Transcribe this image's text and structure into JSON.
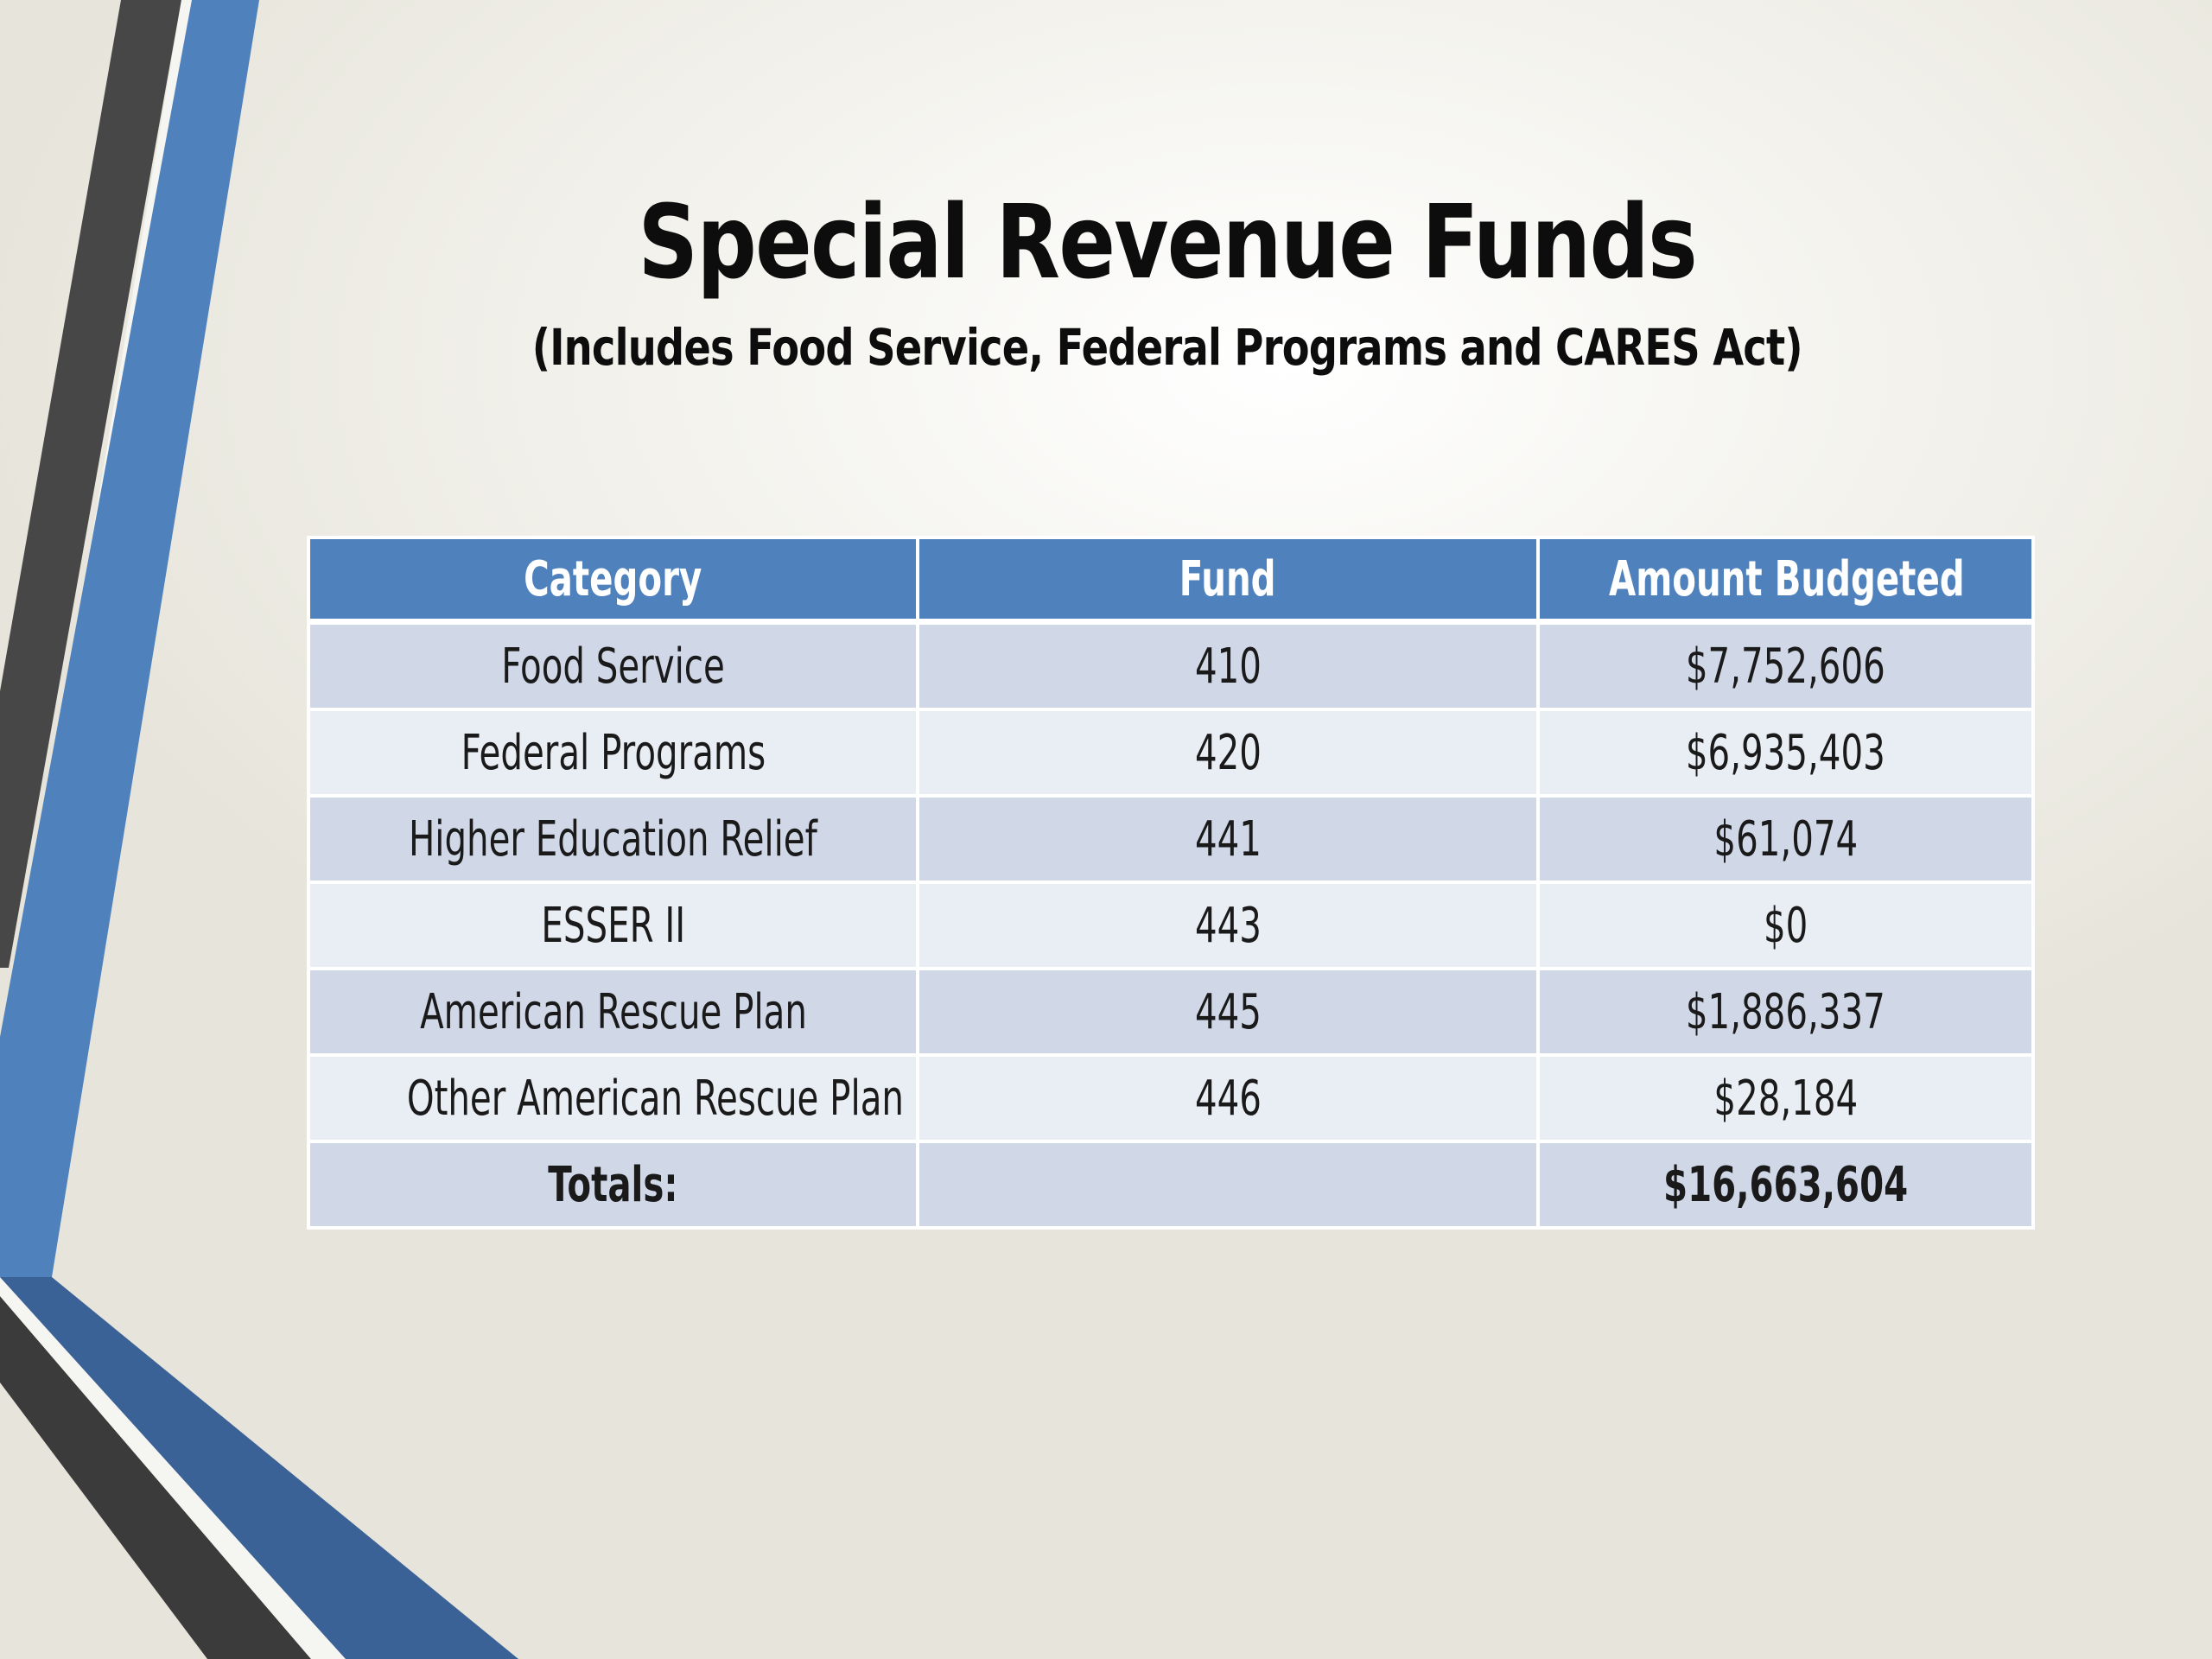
{
  "slide": {
    "title": "Special Revenue Funds",
    "subtitle": "(Includes Food Service, Federal Programs and CARES Act)"
  },
  "table": {
    "headers": [
      "Category",
      "Fund",
      "Amount Budgeted"
    ],
    "rows": [
      {
        "category": "Food Service",
        "fund": "410",
        "amount": "$7,752,606"
      },
      {
        "category": "Federal Programs",
        "fund": "420",
        "amount": "$6,935,403"
      },
      {
        "category": "Higher Education Relief",
        "fund": "441",
        "amount": "$61,074"
      },
      {
        "category": "ESSER II",
        "fund": "443",
        "amount": "$0"
      },
      {
        "category": "American Rescue Plan",
        "fund": "445",
        "amount": "$1,886,337"
      },
      {
        "category": "Other American Rescue Plan",
        "fund": "446",
        "amount": "$28,184"
      }
    ],
    "totals": {
      "label": "Totals:",
      "fund": "",
      "amount": "$16,663,604"
    }
  },
  "colors": {
    "header_fill": "#4f81bd",
    "row_band_dark": "#d0d8e8",
    "row_band_light": "#e9edf4",
    "accent_blue": "#4f81bd",
    "accent_dark_blue": "#3a6296",
    "accent_gray": "#474747"
  }
}
